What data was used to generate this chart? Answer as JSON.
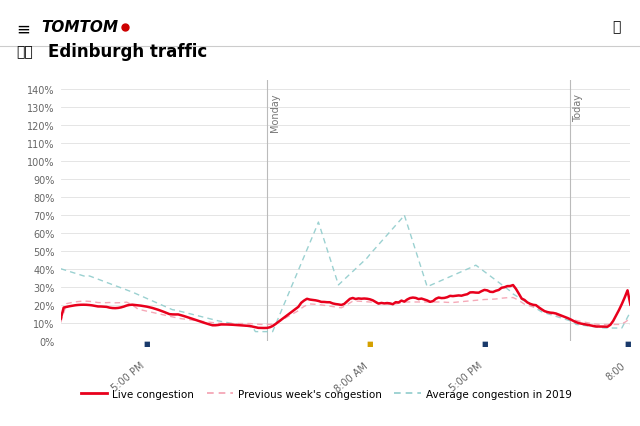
{
  "ylim": [
    0,
    145
  ],
  "yticks": [
    0,
    10,
    20,
    30,
    40,
    50,
    60,
    70,
    80,
    90,
    100,
    110,
    120,
    130,
    140
  ],
  "bg_color": "#ffffff",
  "grid_color": "#e0e0e0",
  "live_color": "#e8001c",
  "prev_color": "#f4a0b0",
  "avg_color": "#90cccc",
  "legend_labels": [
    "Live congestion",
    "Previous week's congestion",
    "Average congestion in 2019"
  ],
  "vline_color": "#bbbbbb",
  "tick_dot_colors": [
    "#1a3a6b",
    "#d4a000",
    "#1a3a6b"
  ],
  "tick_labels": [
    "5:00 PM",
    "8:00 AM",
    "5:00 PM"
  ],
  "tick_label_last": "8:00",
  "vline_monday_label": "Monday",
  "vline_today_label": "Today"
}
